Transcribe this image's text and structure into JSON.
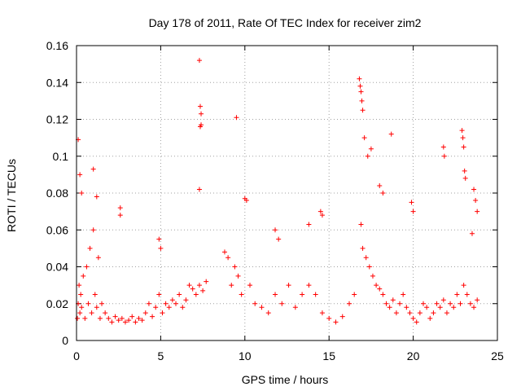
{
  "chart_data": {
    "type": "scatter",
    "title": "Day 178 of 2011, Rate Of TEC Index for receiver zim2",
    "xlabel": "GPS time / hours",
    "ylabel": "ROTI / TECUs",
    "xlim": [
      0,
      25
    ],
    "ylim": [
      0,
      0.16
    ],
    "x_ticks": [
      0,
      5,
      10,
      15,
      20,
      25
    ],
    "x_tick_labels": [
      "0",
      "5",
      "10",
      "15",
      "20",
      "25"
    ],
    "y_ticks": [
      0,
      0.02,
      0.04,
      0.06,
      0.08,
      0.1,
      0.12,
      0.14,
      0.16
    ],
    "y_tick_labels": [
      "0",
      "0.02",
      "0.04",
      "0.06",
      "0.08",
      "0.1",
      "0.12",
      "0.14",
      "0.16"
    ],
    "grid": true,
    "marker": "+",
    "marker_color": "#ff0000",
    "series": [
      {
        "name": "ROTI",
        "x": [
          0.05,
          0.1,
          0.15,
          0.2,
          0.25,
          0.3,
          0.4,
          0.5,
          0.6,
          0.7,
          0.8,
          0.9,
          1.0,
          1.1,
          1.2,
          1.3,
          1.4,
          1.5,
          1.7,
          1.9,
          2.1,
          2.3,
          2.5,
          2.7,
          2.9,
          3.1,
          3.3,
          3.5,
          3.7,
          3.9,
          4.1,
          4.3,
          4.5,
          4.7,
          4.9,
          5.1,
          5.3,
          5.5,
          5.7,
          5.9,
          6.1,
          6.3,
          6.5,
          6.7,
          6.9,
          7.1,
          7.3,
          7.5,
          7.7,
          0.1,
          0.2,
          0.3,
          1.0,
          1.2,
          2.6,
          2.6,
          4.9,
          5.0,
          7.3,
          7.35,
          7.4,
          7.4,
          7.35,
          7.3,
          9.5,
          10.0,
          10.1,
          9.6,
          9.4,
          9.0,
          8.8,
          9.2,
          9.8,
          10.3,
          10.6,
          11.0,
          11.4,
          11.8,
          12.2,
          12.6,
          13.0,
          13.4,
          13.8,
          14.2,
          14.6,
          15.0,
          15.4,
          15.8,
          16.2,
          16.5,
          11.8,
          12.0,
          13.8,
          14.5,
          14.6,
          16.8,
          16.85,
          16.9,
          16.95,
          17.0,
          17.1,
          17.3,
          17.5,
          16.9,
          17.0,
          17.2,
          17.4,
          17.6,
          17.8,
          18.0,
          18.2,
          18.4,
          18.6,
          18.8,
          19.0,
          19.2,
          19.4,
          19.6,
          19.8,
          20.0,
          20.2,
          20.4,
          20.6,
          20.8,
          21.0,
          21.2,
          21.4,
          21.6,
          21.8,
          22.0,
          22.2,
          22.4,
          22.6,
          22.8,
          23.0,
          23.2,
          23.4,
          23.6,
          23.8,
          18.0,
          18.2,
          18.7,
          19.9,
          20.0,
          21.8,
          21.85,
          22.9,
          22.95,
          23.0,
          23.05,
          23.1,
          23.6,
          23.7,
          23.8,
          23.5
        ],
        "y": [
          0.012,
          0.02,
          0.03,
          0.015,
          0.025,
          0.018,
          0.035,
          0.012,
          0.04,
          0.02,
          0.05,
          0.015,
          0.06,
          0.025,
          0.018,
          0.045,
          0.012,
          0.02,
          0.015,
          0.012,
          0.01,
          0.013,
          0.011,
          0.012,
          0.01,
          0.011,
          0.013,
          0.01,
          0.012,
          0.011,
          0.015,
          0.02,
          0.013,
          0.018,
          0.025,
          0.015,
          0.02,
          0.018,
          0.022,
          0.02,
          0.025,
          0.018,
          0.022,
          0.03,
          0.028,
          0.025,
          0.03,
          0.027,
          0.032,
          0.109,
          0.09,
          0.08,
          0.093,
          0.078,
          0.072,
          0.068,
          0.055,
          0.05,
          0.152,
          0.127,
          0.123,
          0.117,
          0.116,
          0.082,
          0.121,
          0.077,
          0.076,
          0.035,
          0.04,
          0.045,
          0.048,
          0.03,
          0.025,
          0.03,
          0.02,
          0.018,
          0.015,
          0.025,
          0.02,
          0.03,
          0.018,
          0.025,
          0.03,
          0.025,
          0.015,
          0.012,
          0.01,
          0.013,
          0.02,
          0.025,
          0.06,
          0.055,
          0.063,
          0.07,
          0.068,
          0.142,
          0.138,
          0.135,
          0.13,
          0.125,
          0.11,
          0.1,
          0.104,
          0.063,
          0.05,
          0.045,
          0.04,
          0.035,
          0.03,
          0.028,
          0.025,
          0.02,
          0.018,
          0.022,
          0.015,
          0.02,
          0.025,
          0.018,
          0.015,
          0.012,
          0.01,
          0.015,
          0.02,
          0.018,
          0.012,
          0.015,
          0.02,
          0.018,
          0.022,
          0.015,
          0.02,
          0.018,
          0.025,
          0.02,
          0.03,
          0.025,
          0.02,
          0.018,
          0.022,
          0.084,
          0.08,
          0.112,
          0.075,
          0.07,
          0.105,
          0.1,
          0.114,
          0.11,
          0.105,
          0.092,
          0.088,
          0.082,
          0.076,
          0.07,
          0.058
        ]
      }
    ]
  }
}
